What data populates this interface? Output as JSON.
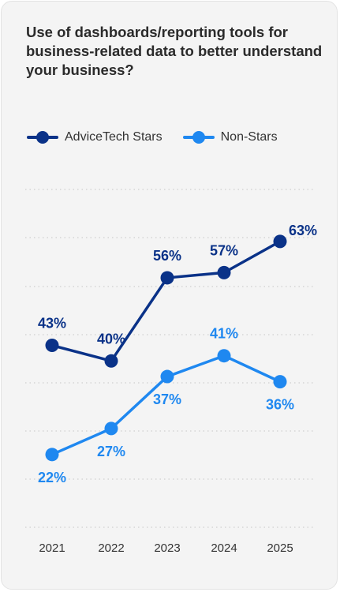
{
  "title": "Use of dashboards/reporting tools for business-related data to better understand your business?",
  "chart_data": {
    "type": "line",
    "title": "Use of dashboards/reporting tools for business-related data to better understand your business?",
    "xlabel": "",
    "ylabel": "",
    "categories": [
      "2021",
      "2022",
      "2023",
      "2024",
      "2025"
    ],
    "series": [
      {
        "name": "AdviceTech Stars",
        "values": [
          43,
          40,
          56,
          57,
          63
        ],
        "labels": [
          "43%",
          "40%",
          "56%",
          "57%",
          "63%"
        ],
        "color": "#0a3288"
      },
      {
        "name": "Non-Stars",
        "values": [
          22,
          27,
          37,
          41,
          36
        ],
        "labels": [
          "22%",
          "27%",
          "37%",
          "41%",
          "36%"
        ],
        "color": "#1f88f0"
      }
    ],
    "ylim": [
      8,
      73
    ],
    "grid": true,
    "legend": "top-left"
  }
}
